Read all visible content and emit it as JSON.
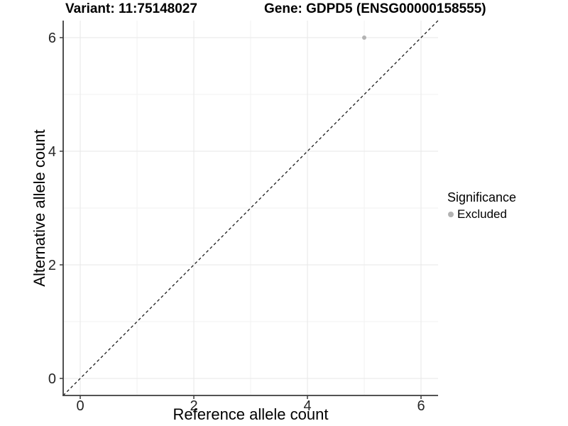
{
  "titles": {
    "variant": "Variant: 11:75148027",
    "gene": "Gene: GDPD5 (ENSG00000158555)"
  },
  "axes": {
    "x_label": "Reference allele count",
    "y_label": "Alternative allele count"
  },
  "legend": {
    "title": "Significance",
    "items": [
      {
        "label": "Excluded",
        "color": "#b3b3b3"
      }
    ]
  },
  "chart_data": {
    "type": "scatter",
    "title": "Variant: 11:75148027   Gene: GDPD5 (ENSG00000158555)",
    "xlabel": "Reference allele count",
    "ylabel": "Alternative allele count",
    "xlim": [
      -0.3,
      6.3
    ],
    "ylim": [
      -0.3,
      6.3
    ],
    "x_ticks": [
      0,
      2,
      4,
      6
    ],
    "y_ticks": [
      0,
      2,
      4,
      6
    ],
    "x_minor_ticks": [
      1,
      3,
      5
    ],
    "y_minor_ticks": [
      1,
      3,
      5
    ],
    "grid": true,
    "legend_position": "right",
    "series": [
      {
        "name": "Excluded",
        "color": "#b3b3b3",
        "points": [
          {
            "x": 5,
            "y": 6
          }
        ]
      }
    ],
    "reference_line": {
      "type": "identity",
      "slope": 1,
      "intercept": 0,
      "style": "dashed",
      "color": "#1a1a1a"
    },
    "colors": {
      "grid_major": "#e7e7e7",
      "grid_minor": "#f2f2f2",
      "axis_line": "#3c3c3c",
      "tick_text": "#262626",
      "background": "#ffffff"
    }
  }
}
